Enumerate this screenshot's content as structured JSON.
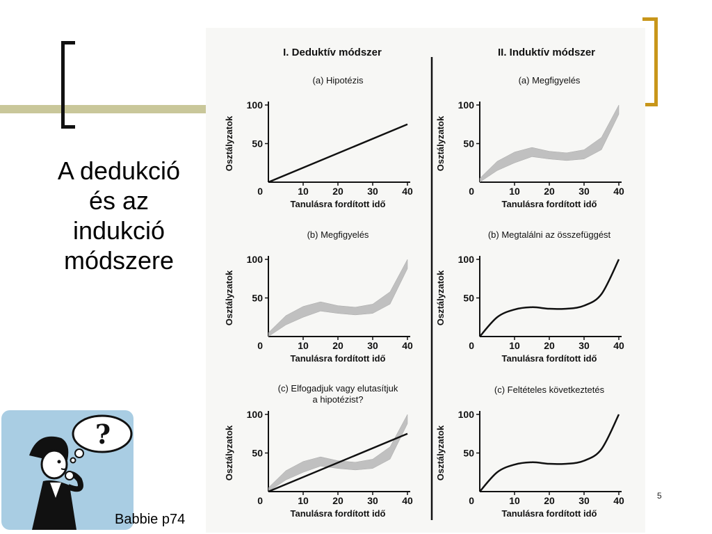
{
  "slide": {
    "title": "A dedukció és az indukció módszere",
    "credit": "Babbie p74",
    "page_number": "5",
    "accent_olive": "#c9c79a",
    "accent_gold": "#c8961a"
  },
  "figure": {
    "columns": [
      {
        "heading": "I. Deduktív módszer",
        "panels": [
          {
            "label": "(a) Hipotézis",
            "content": [
              "line"
            ]
          },
          {
            "label": "(b) Megfigyelés",
            "content": [
              "band"
            ]
          },
          {
            "label": "(c) Elfogadjuk vagy elutasítjuk",
            "label_line2": "a hipotézist?",
            "content": [
              "band",
              "line"
            ]
          }
        ]
      },
      {
        "heading": "II. Induktív módszer",
        "panels": [
          {
            "label": "(a) Megfigyelés",
            "content": [
              "band"
            ]
          },
          {
            "label": "(b) Megtalálni az összefüggést",
            "content": [
              "band",
              "curve"
            ]
          },
          {
            "label": "(c) Feltételes következtetés",
            "content": [
              "curve"
            ]
          }
        ]
      }
    ],
    "axes": {
      "ylabel": "Osztályzatok",
      "xlabel": "Tanulásra fordított idő",
      "yticks": [
        "100",
        "50"
      ],
      "xticks": [
        "0",
        "10",
        "20",
        "30",
        "40"
      ]
    }
  },
  "chart_data": [
    {
      "type": "line",
      "title": "(a) Hipotézis",
      "xlabel": "Tanulásra fordított idő",
      "ylabel": "Osztályzatok",
      "xlim": [
        0,
        40
      ],
      "ylim": [
        0,
        100
      ],
      "series": [
        {
          "x": [
            0,
            40
          ],
          "y": [
            0,
            75
          ]
        }
      ]
    },
    {
      "type": "area",
      "title": "(b) Megfigyelés",
      "xlabel": "Tanulásra fordított idő",
      "ylabel": "Osztályzatok",
      "xlim": [
        0,
        40
      ],
      "ylim": [
        0,
        100
      ],
      "series": [
        {
          "x": [
            0,
            5,
            10,
            15,
            20,
            25,
            30,
            35,
            40
          ],
          "y_low": [
            0,
            15,
            25,
            33,
            30,
            28,
            30,
            42,
            88
          ],
          "y_high": [
            5,
            27,
            39,
            45,
            40,
            38,
            42,
            58,
            100
          ]
        }
      ]
    },
    {
      "type": "line",
      "title": "(c) Elfogadjuk vagy elutasítjuk a hipotézist?",
      "xlabel": "Tanulásra fordított idő",
      "ylabel": "Osztályzatok",
      "xlim": [
        0,
        40
      ],
      "ylim": [
        0,
        100
      ],
      "series": [
        {
          "x": [
            0,
            40
          ],
          "y": [
            0,
            75
          ]
        },
        {
          "x": [
            0,
            5,
            10,
            15,
            20,
            25,
            30,
            35,
            40
          ],
          "y_low": [
            0,
            15,
            25,
            33,
            30,
            28,
            30,
            42,
            88
          ],
          "y_high": [
            5,
            27,
            39,
            45,
            40,
            38,
            42,
            58,
            100
          ]
        }
      ]
    },
    {
      "type": "area",
      "title": "(a) Megfigyelés",
      "xlabel": "Tanulásra fordított idő",
      "ylabel": "Osztályzatok",
      "xlim": [
        0,
        40
      ],
      "ylim": [
        0,
        100
      ],
      "series": [
        {
          "x": [
            0,
            5,
            10,
            15,
            20,
            25,
            30,
            35,
            40
          ],
          "y_low": [
            0,
            15,
            25,
            33,
            30,
            28,
            30,
            42,
            88
          ],
          "y_high": [
            5,
            27,
            39,
            45,
            40,
            38,
            42,
            58,
            100
          ]
        }
      ]
    },
    {
      "type": "line",
      "title": "(b) Megtalálni az összefüggést",
      "xlabel": "Tanulásra fordított idő",
      "ylabel": "Osztályzatok",
      "xlim": [
        0,
        40
      ],
      "ylim": [
        0,
        100
      ],
      "series": [
        {
          "x": [
            0,
            5,
            10,
            15,
            20,
            25,
            30,
            35,
            40
          ],
          "y": [
            0,
            25,
            35,
            38,
            36,
            36,
            40,
            55,
            100
          ]
        }
      ]
    },
    {
      "type": "line",
      "title": "(c) Feltételes következtetés",
      "xlabel": "Tanulásra fordított idő",
      "ylabel": "Osztályzatok",
      "xlim": [
        0,
        40
      ],
      "ylim": [
        0,
        100
      ],
      "series": [
        {
          "x": [
            0,
            5,
            10,
            15,
            20,
            25,
            30,
            35,
            40
          ],
          "y": [
            0,
            25,
            35,
            38,
            36,
            36,
            40,
            55,
            100
          ]
        }
      ]
    }
  ]
}
